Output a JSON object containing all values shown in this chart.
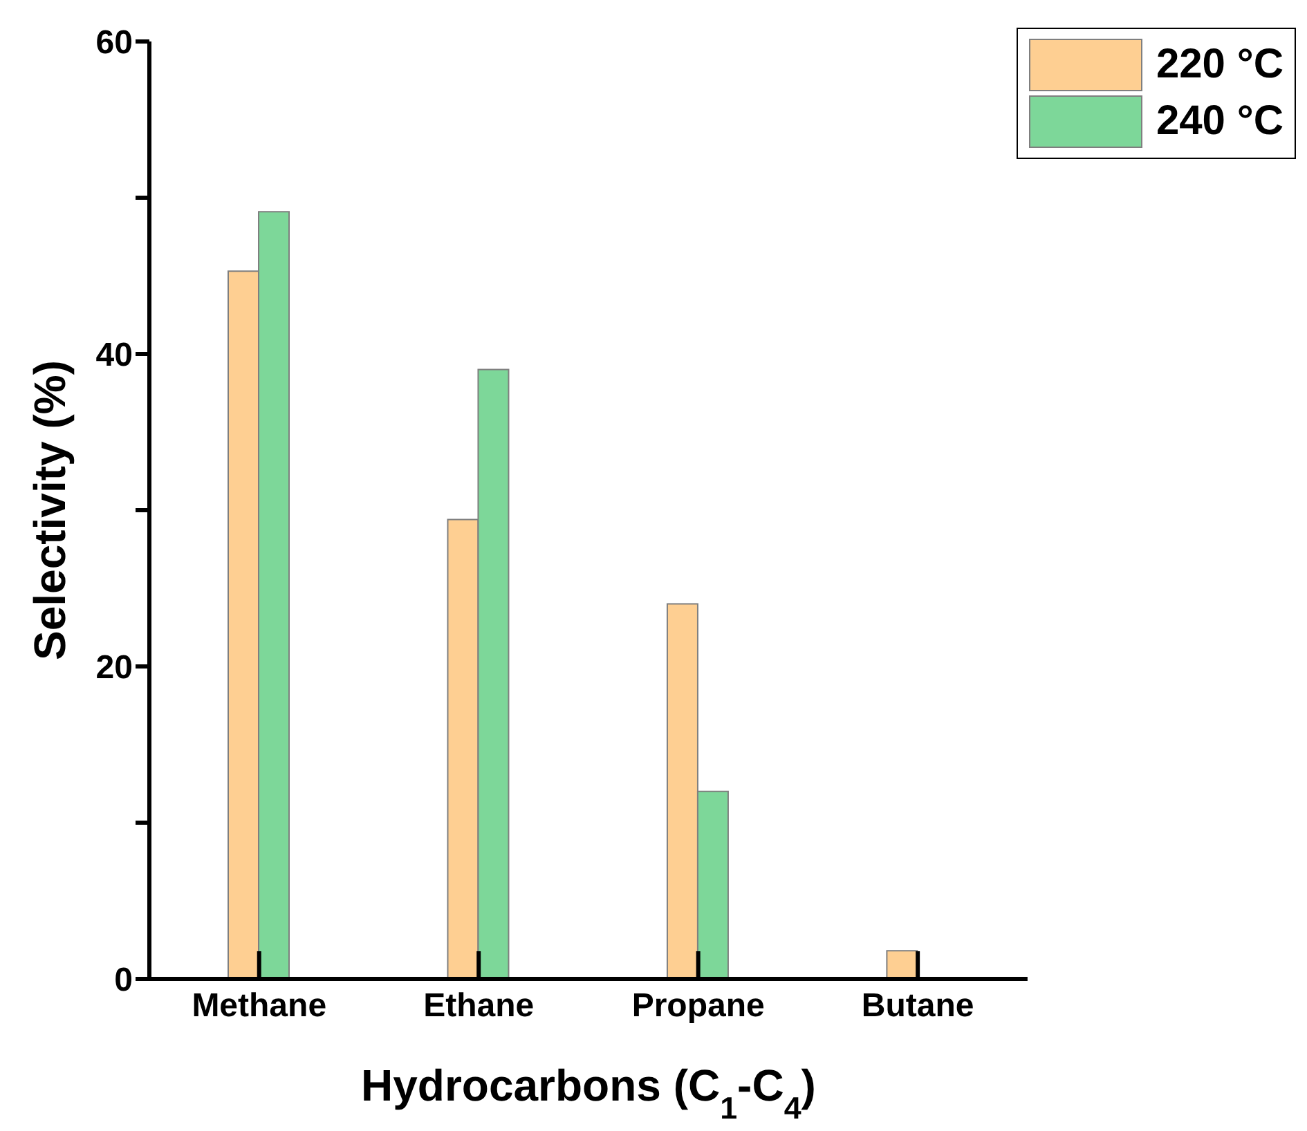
{
  "chart_data": {
    "type": "bar",
    "xlabel": "Hydrocarbons (C$_{1}$-C$_{4}$)",
    "ylabel": "Selectivity (%)",
    "categories": [
      "Methane",
      "Ethane",
      "Propane",
      "Butane"
    ],
    "series": [
      {
        "name": "220 °C",
        "color": "#fecf92",
        "values": [
          45.3,
          29.4,
          24.0,
          1.8
        ]
      },
      {
        "name": "240 °C",
        "color": "#7dd799",
        "values": [
          49.1,
          39.0,
          12.0,
          0
        ]
      }
    ],
    "ylim": [
      0,
      60
    ],
    "yticks": [
      0,
      {
        "value": 10,
        "label": null
      },
      20,
      {
        "value": 30,
        "label": null
      },
      40,
      {
        "value": 50,
        "label": null
      },
      60
    ],
    "grid": false,
    "legend": "top right"
  }
}
